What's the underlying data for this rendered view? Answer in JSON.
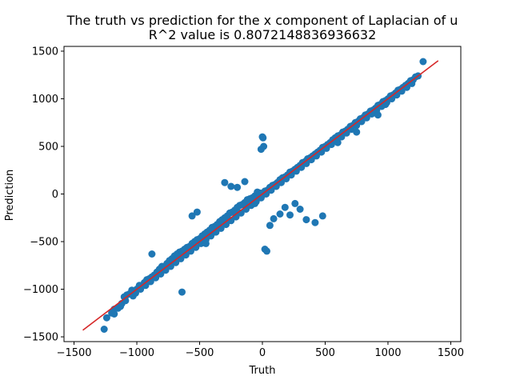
{
  "chart_data": {
    "type": "scatter",
    "title": "The truth vs prediction for the x component of Laplacian of u",
    "subtitle": "R^2 value is 0.8072148836936632",
    "xlabel": "Truth",
    "ylabel": "Prediction",
    "xlim": [
      -1580,
      1580
    ],
    "ylim": [
      -1550,
      1550
    ],
    "xticks": [
      -1500,
      -1000,
      -500,
      0,
      500,
      1000,
      1500
    ],
    "yticks": [
      -1500,
      -1000,
      -500,
      0,
      500,
      1000,
      1500
    ],
    "grid": false,
    "colors": {
      "points": "#1f77b4",
      "reference_line": "#d62728"
    },
    "reference_line": {
      "x": [
        -1430,
        1400
      ],
      "y": [
        -1430,
        1400
      ]
    },
    "series": [
      {
        "x": [
          -1260,
          -1240,
          -1200,
          -1180,
          -1150,
          -1120,
          -1100,
          -1080,
          -1060,
          -1040,
          -1000,
          -980,
          -960,
          -940,
          -920,
          -900,
          -880,
          -860,
          -840,
          -820,
          -800,
          -780,
          -760,
          -740,
          -720,
          -700,
          -680,
          -660,
          -640,
          -620,
          -600,
          -580,
          -560,
          -540,
          -520,
          -500,
          -480,
          -460,
          -440,
          -420,
          -400,
          -380,
          -360,
          -340,
          -320,
          -300,
          -280,
          -260,
          -240,
          -220,
          -200,
          -180,
          -160,
          -140,
          -120,
          -100,
          -80,
          -60,
          -40,
          -20,
          0,
          20,
          40,
          60,
          80,
          100,
          120,
          140,
          160,
          180,
          200,
          220,
          240,
          260,
          280,
          300,
          320,
          340,
          360,
          380,
          400,
          420,
          440,
          460,
          480,
          500,
          520,
          540,
          560,
          580,
          600,
          620,
          640,
          660,
          680,
          700,
          720,
          740,
          760,
          780,
          800,
          820,
          840,
          860,
          880,
          900,
          920,
          940,
          960,
          980,
          1000,
          1020,
          1040,
          1060,
          1080,
          1100,
          1120,
          1140,
          1160,
          1180,
          1200,
          1220,
          1240,
          1280,
          -1180,
          -1130,
          -1090,
          -1030,
          -1010,
          -970,
          -930,
          -890,
          -850,
          -810,
          -770,
          -730,
          -690,
          -650,
          -610,
          -570,
          -530,
          -490,
          -450,
          -410,
          -370,
          -330,
          -290,
          -250,
          -210,
          -170,
          -130,
          -90,
          -50,
          -10,
          30,
          70,
          110,
          150,
          190,
          230,
          270,
          310,
          350,
          390,
          430,
          470,
          510,
          550,
          590,
          630,
          670,
          710,
          750,
          790,
          830,
          870,
          910,
          950,
          990,
          1030,
          1070,
          1110,
          1150,
          1190,
          -880,
          -640,
          -560,
          -520,
          -450,
          -380,
          -300,
          -250,
          -200,
          -140,
          -60,
          -10,
          0,
          5,
          10,
          20,
          35,
          60,
          90,
          140,
          180,
          220,
          260,
          300,
          350,
          420,
          480,
          600,
          750,
          920,
          980
        ],
        "y": [
          -1420,
          -1300,
          -1250,
          -1210,
          -1200,
          -1150,
          -1080,
          -1060,
          -1050,
          -1010,
          -1000,
          -960,
          -960,
          -930,
          -900,
          -890,
          -870,
          -850,
          -820,
          -790,
          -760,
          -760,
          -730,
          -700,
          -680,
          -650,
          -630,
          -610,
          -600,
          -580,
          -560,
          -550,
          -520,
          -500,
          -480,
          -470,
          -440,
          -420,
          -400,
          -380,
          -350,
          -340,
          -320,
          -290,
          -270,
          -250,
          -230,
          -200,
          -190,
          -170,
          -140,
          -120,
          -110,
          -90,
          -60,
          -50,
          -40,
          -20,
          20,
          10,
          -10,
          30,
          40,
          70,
          90,
          100,
          120,
          150,
          170,
          180,
          200,
          230,
          240,
          260,
          280,
          300,
          330,
          340,
          370,
          380,
          400,
          420,
          440,
          460,
          490,
          500,
          520,
          540,
          570,
          590,
          610,
          620,
          650,
          660,
          680,
          710,
          720,
          750,
          760,
          790,
          800,
          830,
          840,
          870,
          880,
          900,
          930,
          940,
          970,
          980,
          1000,
          1030,
          1040,
          1060,
          1090,
          1100,
          1120,
          1140,
          1160,
          1190,
          1200,
          1230,
          1240,
          1390,
          -1260,
          -1180,
          -1120,
          -1070,
          -1040,
          -1000,
          -960,
          -920,
          -880,
          -840,
          -800,
          -760,
          -720,
          -680,
          -640,
          -600,
          -560,
          -520,
          -480,
          -440,
          -400,
          -360,
          -320,
          -280,
          -240,
          -200,
          -160,
          -120,
          -80,
          -40,
          0,
          40,
          80,
          120,
          160,
          200,
          240,
          280,
          320,
          360,
          400,
          440,
          480,
          520,
          560,
          600,
          640,
          680,
          720,
          760,
          800,
          840,
          880,
          920,
          960,
          1000,
          1040,
          1080,
          1120,
          1160,
          -630,
          -1030,
          -230,
          -190,
          -520,
          -400,
          120,
          80,
          70,
          130,
          -100,
          470,
          600,
          590,
          500,
          -580,
          -600,
          -330,
          -260,
          -210,
          -140,
          -220,
          -100,
          -160,
          -270,
          -300,
          -230,
          540,
          650,
          830,
          940
        ]
      }
    ]
  }
}
